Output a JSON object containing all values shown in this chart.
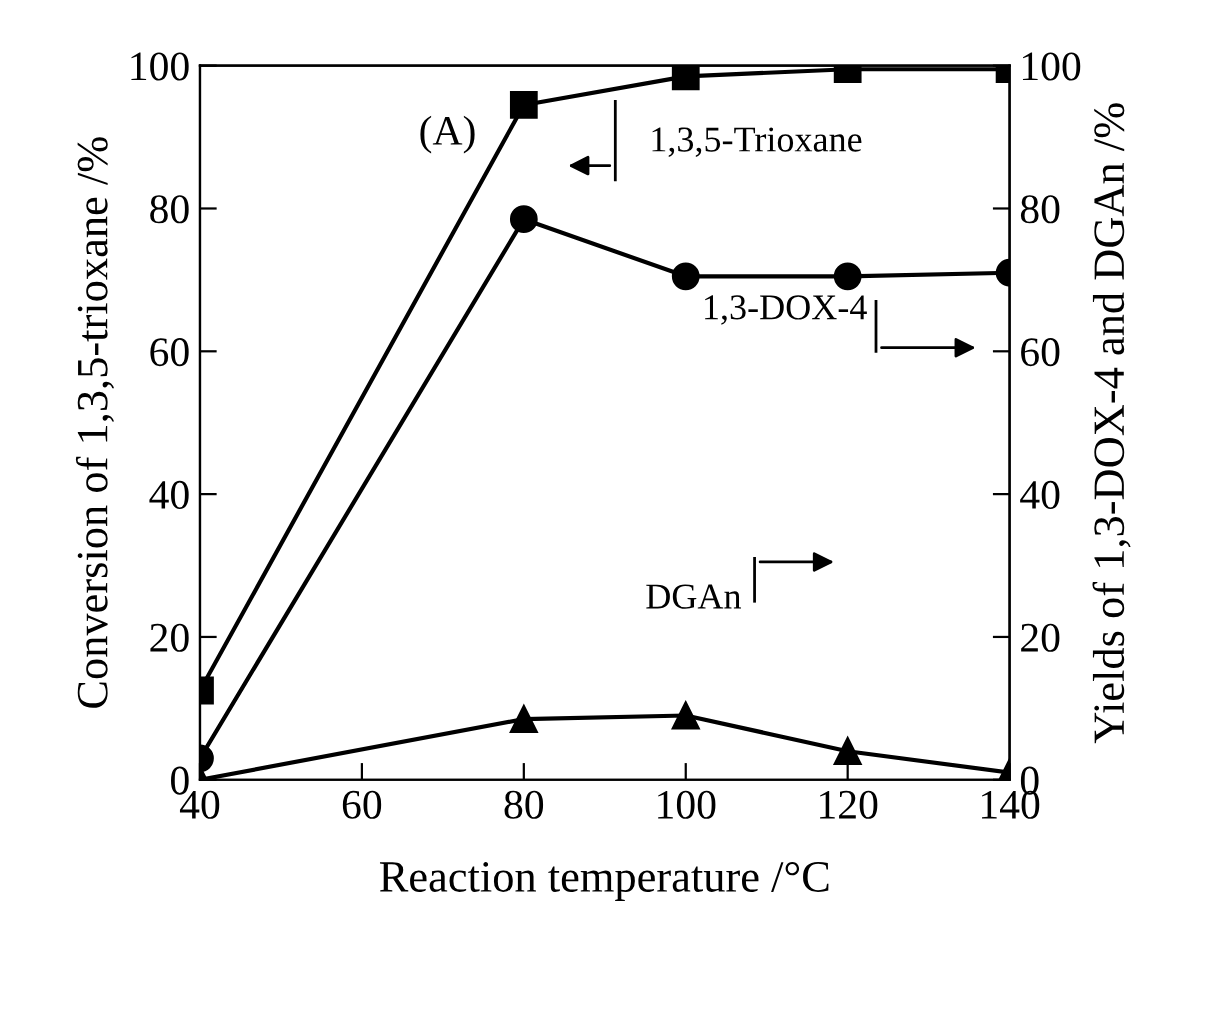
{
  "chart_data": {
    "type": "line",
    "xlabel": "Reaction temperature /°C",
    "ylabel": "Conversion of 1,3,5-trioxane /%",
    "y2label": "Yields of 1,3-DOX-4 and DGAn /%",
    "x": [
      40,
      80,
      100,
      120,
      140
    ],
    "series": [
      {
        "name": "1,3,5-Trioxane",
        "color": "#000000",
        "marker": "square",
        "values": [
          12.5,
          94.5,
          98.5,
          99.5,
          99.5
        ]
      },
      {
        "name": "1,3-DOX-4",
        "color": "#000000",
        "marker": "circle",
        "axis": "y2",
        "values": [
          3,
          78.5,
          70.5,
          70.5,
          71
        ]
      },
      {
        "name": "DGAn",
        "color": "#000000",
        "marker": "triangle",
        "axis": "y2",
        "values": [
          0,
          8.5,
          9,
          4,
          1
        ]
      }
    ],
    "xlim": [
      40,
      140
    ],
    "xticks": [
      40,
      60,
      80,
      100,
      120,
      140
    ],
    "ylim": [
      0,
      100
    ],
    "yticks": [
      0,
      20,
      40,
      60,
      80,
      100
    ],
    "y2lim": [
      0,
      100
    ],
    "y2ticks": [
      0,
      20,
      40,
      60,
      80,
      100
    ],
    "annotations": [
      "(A)"
    ],
    "grid": false,
    "legend": "right",
    "line_style": "solid"
  }
}
